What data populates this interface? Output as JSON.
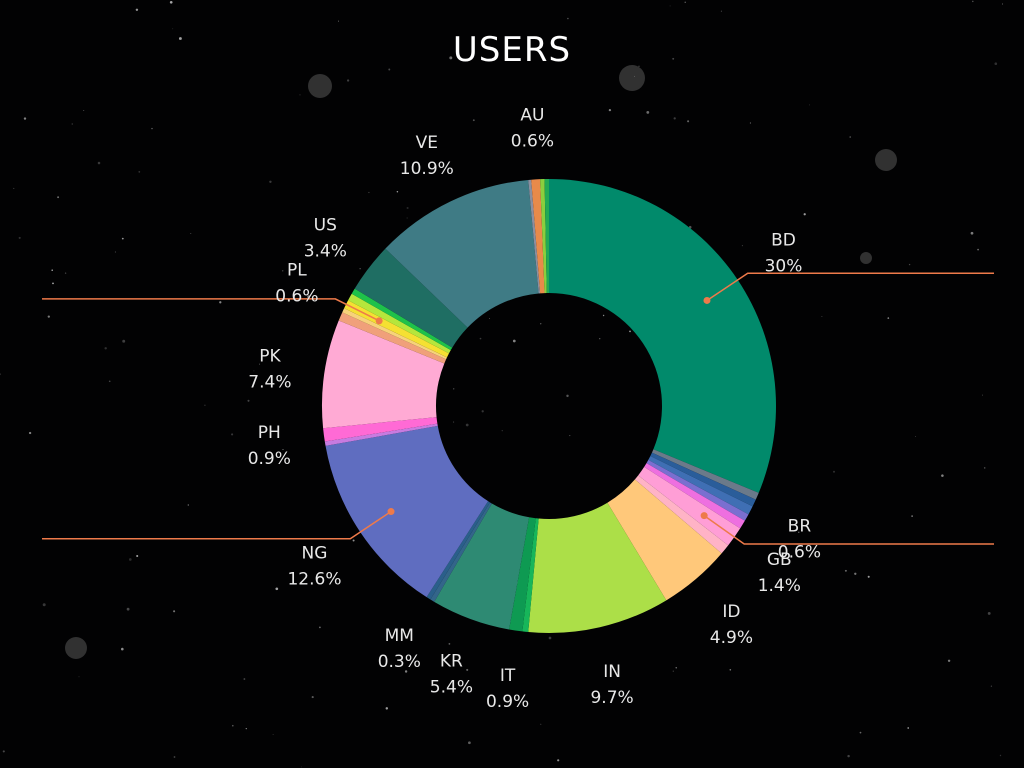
{
  "chart_data": {
    "type": "pie",
    "title": "USERS",
    "donut": true,
    "legend": "none",
    "slices": [
      {
        "label": "BD",
        "value": 30,
        "text": "30%",
        "color": "#018a6b",
        "callout": true
      },
      {
        "label": "",
        "value": 0.5,
        "text": "",
        "color": "#6b7a8a"
      },
      {
        "label": "",
        "value": 0.5,
        "text": "",
        "color": "#2a5d9a"
      },
      {
        "label": "BR",
        "value": 0.6,
        "text": "0.6%",
        "color": "#3f6fb4"
      },
      {
        "label": "",
        "value": 0.5,
        "text": "",
        "color": "#7a6fd0"
      },
      {
        "label": "",
        "value": 0.6,
        "text": "",
        "color": "#ee6fe0"
      },
      {
        "label": "GB",
        "value": 1.4,
        "text": "1.4%",
        "color": "#ff9ed6",
        "callout": true
      },
      {
        "label": "",
        "value": 0.7,
        "text": "",
        "color": "#ffb3c6"
      },
      {
        "label": "ID",
        "value": 4.9,
        "text": "4.9%",
        "color": "#ffc87a"
      },
      {
        "label": "IN",
        "value": 9.7,
        "text": "9.7%",
        "color": "#acdf48"
      },
      {
        "label": "",
        "value": 0.4,
        "text": "",
        "color": "#17b65a"
      },
      {
        "label": "IT",
        "value": 0.9,
        "text": "0.9%",
        "color": "#0e9a52"
      },
      {
        "label": "KR",
        "value": 5.4,
        "text": "5.4%",
        "color": "#2e8a73"
      },
      {
        "label": "",
        "value": 0.3,
        "text": "",
        "color": "#33658a"
      },
      {
        "label": "MM",
        "value": 0.3,
        "text": "0.3%",
        "color": "#2a5f8a"
      },
      {
        "label": "NG",
        "value": 12.6,
        "text": "12.6%",
        "color": "#5f6dc0",
        "callout": true
      },
      {
        "label": "",
        "value": 0.3,
        "text": "",
        "color": "#c77be0"
      },
      {
        "label": "PH",
        "value": 0.9,
        "text": "0.9%",
        "color": "#ff6ad5"
      },
      {
        "label": "PK",
        "value": 7.4,
        "text": "7.4%",
        "color": "#ffaad4"
      },
      {
        "label": "",
        "value": 0.6,
        "text": "",
        "color": "#f0a07a"
      },
      {
        "label": "",
        "value": 0.3,
        "text": "",
        "color": "#f7d27a"
      },
      {
        "label": "PL",
        "value": 0.6,
        "text": "0.6%",
        "color": "#f5e032",
        "callout": true
      },
      {
        "label": "",
        "value": 0.5,
        "text": "",
        "color": "#b5e63c"
      },
      {
        "label": "",
        "value": 0.4,
        "text": "",
        "color": "#1ec24a"
      },
      {
        "label": "US",
        "value": 3.4,
        "text": "3.4%",
        "color": "#1f6e63"
      },
      {
        "label": "VE",
        "value": 10.9,
        "text": "10.9%",
        "color": "#3f7b85"
      },
      {
        "label": "",
        "value": 0.2,
        "text": "",
        "color": "#8a8fa0"
      },
      {
        "label": "AU",
        "value": 0.6,
        "text": "0.6%",
        "color": "#e88a4a"
      },
      {
        "label": "",
        "value": 0.3,
        "text": "",
        "color": "#8acf3e"
      },
      {
        "label": "",
        "value": 0.3,
        "text": "",
        "color": "#22aa55"
      }
    ]
  }
}
